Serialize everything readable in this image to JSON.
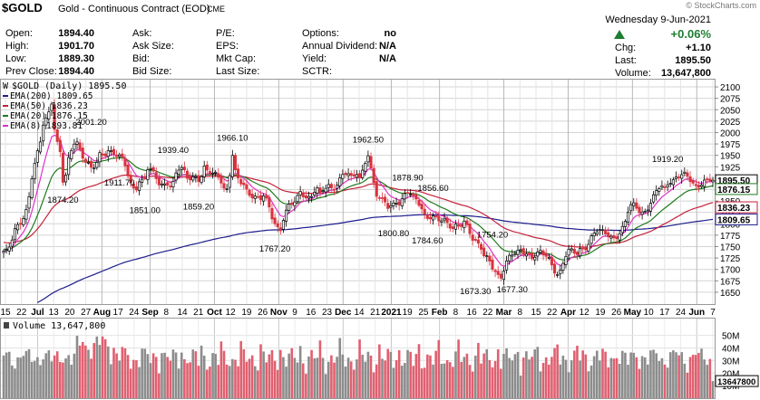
{
  "watermark": "© StockCharts.com",
  "header": {
    "symbol": "$GOLD",
    "name": "Gold - Continuous Contract (EOD)",
    "exchange": "CME",
    "date": "Wednesday  9-Jun-2021",
    "change_pct": "+0.06%",
    "change_arrow": "up-triangle",
    "stats": {
      "open_label": "Open:",
      "open": "1894.40",
      "high_label": "High:",
      "high": "1901.70",
      "low_label": "Low:",
      "low": "1889.30",
      "prev_close_label": "Prev Close:",
      "prev_close": "1894.40",
      "ask_label": "Ask:",
      "ask": "",
      "ask_size_label": "Ask Size:",
      "ask_size": "",
      "bid_label": "Bid:",
      "bid": "",
      "bid_size_label": "Bid Size:",
      "bid_size": "",
      "pe_label": "P/E:",
      "pe": "",
      "eps_label": "EPS:",
      "eps": "",
      "mktcap_label": "Mkt Cap:",
      "mktcap": "",
      "lastsize_label": "Last Size:",
      "lastsize": "",
      "options_label": "Options:",
      "options": "no",
      "dividend_label": "Annual Dividend:",
      "dividend": "N/A",
      "yield_label": "Yield:",
      "yield": "N/A",
      "sctr_label": "SCTR:",
      "sctr": "",
      "chg_label": "Chg:",
      "chg": "+1.10",
      "last_label": "Last:",
      "last": "1895.50",
      "volume_label": "Volume:",
      "volume": "13,647,800"
    }
  },
  "legend": {
    "title": "$GOLD (Daily) 1895.50",
    "items": [
      {
        "label": "EMA(200) 1809.65",
        "color": "#1c1c8c"
      },
      {
        "label": "EMA(50) 1836.23",
        "color": "#c4223a"
      },
      {
        "label": "EMA(20) 1876.15",
        "color": "#1f7a1f"
      },
      {
        "label": "EMA(8) 1893.81",
        "color": "#e032c8"
      }
    ]
  },
  "volume_legend": "Volume 13,647,800",
  "colors": {
    "up": "#000000",
    "down": "#d9343f",
    "vol_up": "#8c8c8c",
    "vol_down": "#e06070",
    "grid": "#d4d4d4",
    "ema200": "#1c1c8c",
    "ema50": "#c4223a",
    "ema20": "#1f7a1f",
    "ema8": "#e032c8"
  },
  "chart_data": {
    "type": "line",
    "title": "$GOLD (Daily) 1895.50",
    "price_axis": {
      "ylim": [
        1628,
        2112
      ],
      "ticks": [
        1650,
        1675,
        1700,
        1725,
        1750,
        1775,
        1800,
        1825,
        1850,
        1875,
        1900,
        1925,
        1950,
        1975,
        2000,
        2025,
        2050,
        2075,
        2100
      ],
      "tick_labels": [
        "1650",
        "1675",
        "1700",
        "1725",
        "1750",
        "1775",
        "1800",
        "1825",
        "1850",
        "1875",
        "1900",
        "1925",
        "1950",
        "1975",
        "2000",
        "2025",
        "2050",
        "2075",
        "2100"
      ]
    },
    "x_tick_labels": [
      {
        "label": "15",
        "bold": false
      },
      {
        "label": "22",
        "bold": false
      },
      {
        "label": "Jul",
        "bold": true
      },
      {
        "label": "13",
        "bold": false
      },
      {
        "label": "20",
        "bold": false
      },
      {
        "label": "27",
        "bold": false
      },
      {
        "label": "Aug",
        "bold": true
      },
      {
        "label": "17",
        "bold": false
      },
      {
        "label": "24",
        "bold": false
      },
      {
        "label": "Sep",
        "bold": true
      },
      {
        "label": "8",
        "bold": false
      },
      {
        "label": "14",
        "bold": false
      },
      {
        "label": "21",
        "bold": false
      },
      {
        "label": "Oct",
        "bold": true
      },
      {
        "label": "12",
        "bold": false
      },
      {
        "label": "19",
        "bold": false
      },
      {
        "label": "26",
        "bold": false
      },
      {
        "label": "Nov",
        "bold": true
      },
      {
        "label": "9",
        "bold": false
      },
      {
        "label": "16",
        "bold": false
      },
      {
        "label": "23",
        "bold": false
      },
      {
        "label": "Dec",
        "bold": true
      },
      {
        "label": "14",
        "bold": false
      },
      {
        "label": "21",
        "bold": false
      },
      {
        "label": "2021",
        "bold": true
      },
      {
        "label": "19",
        "bold": false
      },
      {
        "label": "25",
        "bold": false
      },
      {
        "label": "Feb",
        "bold": true
      },
      {
        "label": "8",
        "bold": false
      },
      {
        "label": "16",
        "bold": false
      },
      {
        "label": "22",
        "bold": false
      },
      {
        "label": "Mar",
        "bold": true
      },
      {
        "label": "8",
        "bold": false
      },
      {
        "label": "15",
        "bold": false
      },
      {
        "label": "22",
        "bold": false
      },
      {
        "label": "Apr",
        "bold": true
      },
      {
        "label": "12",
        "bold": false
      },
      {
        "label": "19",
        "bold": false
      },
      {
        "label": "26",
        "bold": false
      },
      {
        "label": "May",
        "bold": true
      },
      {
        "label": "10",
        "bold": false
      },
      {
        "label": "17",
        "bold": false
      },
      {
        "label": "24",
        "bold": false
      },
      {
        "label": "Jun",
        "bold": true
      },
      {
        "label": "7",
        "bold": false
      }
    ],
    "anchors": [
      1740,
      1735,
      1760,
      1790,
      1800,
      1820,
      1840,
      1900,
      1940,
      1965,
      2025,
      2035,
      2070,
      1990,
      1965,
      1874,
      1930,
      1960,
      1990,
      1965,
      1945,
      1935,
      1915,
      1925,
      1950,
      1950,
      1965,
      1960,
      1952,
      1945,
      1935,
      1905,
      1880,
      1880,
      1900,
      1893,
      1920,
      1912,
      1900,
      1885,
      1890,
      1893,
      1880,
      1908,
      1920,
      1914,
      1900,
      1905,
      1905,
      1895,
      1920,
      1910,
      1908,
      1910,
      1905,
      1880,
      1875,
      1955,
      1900,
      1890,
      1886,
      1870,
      1865,
      1860,
      1850,
      1860,
      1840,
      1815,
      1800,
      1786,
      1820,
      1835,
      1840,
      1850,
      1870,
      1865,
      1860,
      1862,
      1880,
      1860,
      1875,
      1885,
      1878,
      1888,
      1900,
      1910,
      1905,
      1895,
      1915,
      1900,
      1935,
      1954,
      1900,
      1860,
      1850,
      1852,
      1840,
      1845,
      1850,
      1840,
      1858,
      1868,
      1860,
      1858,
      1845,
      1820,
      1810,
      1810,
      1808,
      1808,
      1812,
      1805,
      1790,
      1795,
      1790,
      1800,
      1790,
      1770,
      1765,
      1755,
      1725,
      1720,
      1700,
      1688,
      1685,
      1708,
      1730,
      1734,
      1730,
      1740,
      1733,
      1736,
      1730,
      1736,
      1738,
      1728,
      1720,
      1705,
      1690,
      1700,
      1730,
      1740,
      1738,
      1728,
      1743,
      1748,
      1760,
      1780,
      1785,
      1780,
      1778,
      1772,
      1770,
      1776,
      1785,
      1800,
      1830,
      1840,
      1835,
      1825,
      1830,
      1840,
      1855,
      1870,
      1880,
      1875,
      1895,
      1898,
      1905,
      1908,
      1905,
      1895,
      1888,
      1880,
      1892,
      1898,
      1895,
      1895
    ],
    "annotations": [
      {
        "label": "1874.20",
        "index": 15,
        "value": 1874.2,
        "pos": "below"
      },
      {
        "label": "2001.20",
        "index": 22,
        "value": 2001.2,
        "pos": "above"
      },
      {
        "label": "1911.70",
        "index": 29,
        "value": 1911.7,
        "pos": "below"
      },
      {
        "label": "1851.00",
        "index": 35,
        "value": 1851.0,
        "pos": "below"
      },
      {
        "label": "1939.40",
        "index": 42,
        "value": 1939.4,
        "pos": "above"
      },
      {
        "label": "1859.20",
        "index": 49,
        "value": 1859.2,
        "pos": "below"
      },
      {
        "label": "1966.10",
        "index": 57,
        "value": 1966.1,
        "pos": "above"
      },
      {
        "label": "1767.20",
        "index": 68,
        "value": 1767.2,
        "pos": "below"
      },
      {
        "label": "1962.50",
        "index": 91,
        "value": 1962.5,
        "pos": "above"
      },
      {
        "label": "1878.90",
        "index": 101,
        "value": 1878.9,
        "pos": "above"
      },
      {
        "label": "1856.60",
        "index": 107,
        "value": 1856.6,
        "pos": "above"
      },
      {
        "label": "1800.80",
        "index": 97,
        "value": 1800.8,
        "pos": "below"
      },
      {
        "label": "1784.60",
        "index": 106,
        "value": 1784.6,
        "pos": "below"
      },
      {
        "label": "1754.20",
        "index": 122,
        "value": 1754.2,
        "pos": "above"
      },
      {
        "label": "1673.30",
        "index": 118,
        "value": 1673.3,
        "pos": "below"
      },
      {
        "label": "1677.30",
        "index": 127,
        "value": 1677.3,
        "pos": "below"
      },
      {
        "label": "1919.20",
        "index": 166,
        "value": 1919.2,
        "pos": "above"
      }
    ],
    "price_flags": [
      {
        "label": "1895.50",
        "value": 1895.5,
        "bg": "#ffffff",
        "fg": "#000000",
        "border": "#000000"
      },
      {
        "label": "1876.15",
        "value": 1876.15,
        "bg": "#ffffff",
        "fg": "#000000",
        "border": "#1f7a1f"
      },
      {
        "label": "1836.23",
        "value": 1836.23,
        "bg": "#ffffff",
        "fg": "#000000",
        "border": "#c4223a"
      },
      {
        "label": "1809.65",
        "value": 1809.65,
        "bg": "#ffffff",
        "fg": "#000000",
        "border": "#1c1c8c"
      }
    ],
    "volume_axis": {
      "ylim": [
        0,
        62
      ],
      "ticks": [
        10,
        20,
        30,
        40,
        50
      ],
      "tick_labels": [
        "10M",
        "20M",
        "30M",
        "40M",
        "50M"
      ],
      "last_flag": "13647800",
      "last_value": 13.6478
    },
    "grid": true,
    "legend_position": "top-left"
  }
}
